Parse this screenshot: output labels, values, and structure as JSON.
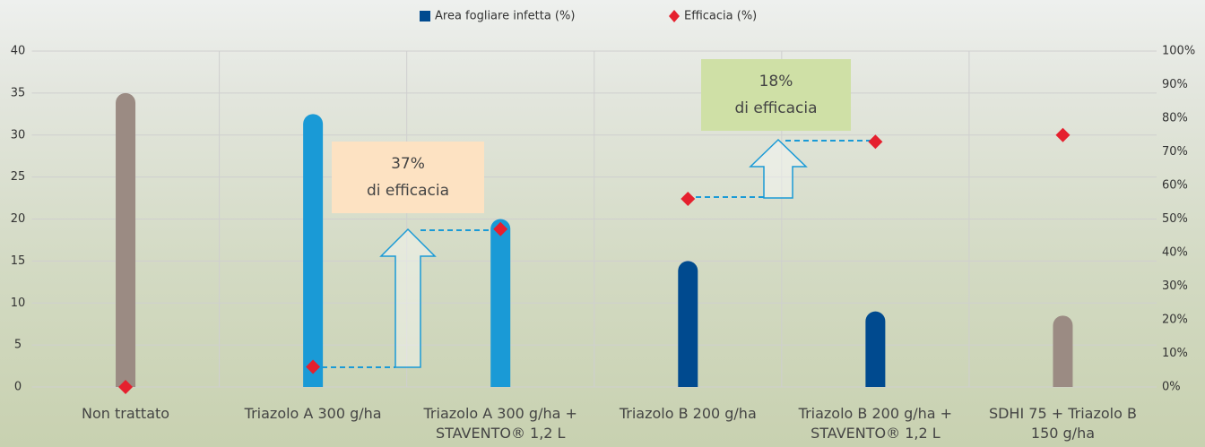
{
  "chart_data": {
    "type": "bar",
    "legend": "top",
    "categories": [
      "Non trattato",
      "Triazolo A 300 g/ha",
      "Triazolo A 300 g/ha + STAVENTO® 1,2 L",
      "Triazolo B 200 g/ha",
      "Triazolo B 200 g/ha + STAVENTO® 1,2 L",
      "SDHI 75 + Triazolo B 150 g/ha"
    ],
    "series": [
      {
        "name": "Area fogliare infetta (%)",
        "type": "bar",
        "color": "#004a8f",
        "colors": [
          "#9b8b83",
          "#1a9ad6",
          "#1a9ad6",
          "#004a8f",
          "#004a8f",
          "#9b8b83"
        ],
        "values": [
          35,
          32.5,
          20,
          15,
          9,
          8.5
        ]
      },
      {
        "name": "Efficacia (%)",
        "type": "scatter",
        "axis": "y2",
        "color": "#e5202e",
        "values": [
          0,
          6,
          47,
          56,
          73,
          75
        ]
      }
    ],
    "ylim": [
      0,
      40
    ],
    "yticks": [
      0,
      5,
      10,
      15,
      20,
      25,
      30,
      35,
      40
    ],
    "y2lim": [
      0,
      100
    ],
    "y2ticks": [
      {
        "value": 0,
        "label": "0%"
      },
      {
        "value": 10,
        "label": "10%"
      },
      {
        "value": 20,
        "label": "20%"
      },
      {
        "value": 30,
        "label": "30%"
      },
      {
        "value": 40,
        "label": "40%"
      },
      {
        "value": 50,
        "label": "50%"
      },
      {
        "value": 60,
        "label": "60%"
      },
      {
        "value": 70,
        "label": "70%"
      },
      {
        "value": 80,
        "label": "80%"
      },
      {
        "value": 90,
        "label": "90%"
      },
      {
        "value": 100,
        "label": "100%"
      }
    ],
    "grid": true,
    "annotations": [
      {
        "lines": [
          "37%",
          "di efficacia"
        ],
        "color": "#fde2c2"
      },
      {
        "lines": [
          "18%",
          "di efficacia"
        ],
        "color": "#cfe0a6"
      }
    ]
  }
}
